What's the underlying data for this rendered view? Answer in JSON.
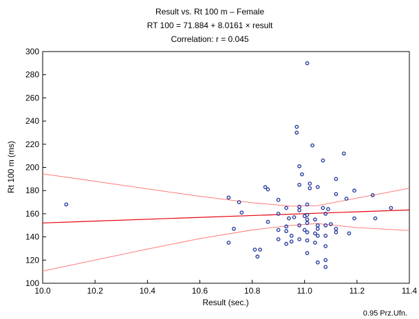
{
  "chart_data": {
    "type": "scatter",
    "title": "Result   vs. Rt 100 m – Female",
    "subtitle": "RT  100 = 71.884 + 8.0161 × result",
    "correlation": "Correlation: r = 0.045",
    "xlabel": "Result (sec.)",
    "ylabel": "Rt 100 m (ms)",
    "note": "0.95 Prz.Ufn.",
    "xlim": [
      10.0,
      11.4
    ],
    "ylim": [
      100,
      300
    ],
    "x_ticks": [
      10.0,
      10.2,
      10.4,
      10.6,
      10.8,
      11.0,
      11.2,
      11.4
    ],
    "x_tick_labels": [
      "10.0",
      "10.2",
      "10.4",
      "10.6",
      "10.8",
      "11.0",
      "11.2",
      "11.4"
    ],
    "y_ticks": [
      100,
      120,
      140,
      160,
      180,
      200,
      220,
      240,
      260,
      280,
      300
    ],
    "y_tick_labels": [
      "100",
      "120",
      "140",
      "160",
      "180",
      "200",
      "220",
      "240",
      "260",
      "280",
      "300"
    ],
    "grid": false,
    "regression": {
      "intercept": 71.884,
      "slope": 8.0161,
      "color": "#e8000b"
    },
    "confidence_band": {
      "level": 0.95,
      "color": "#ff6b6b",
      "upper": [
        [
          10.0,
          194.5
        ],
        [
          10.2,
          188
        ],
        [
          10.4,
          181.5
        ],
        [
          10.6,
          175
        ],
        [
          10.8,
          169.5
        ],
        [
          10.95,
          166.5
        ],
        [
          11.05,
          167
        ],
        [
          11.2,
          173.5
        ],
        [
          11.4,
          182
        ]
      ],
      "lower": [
        [
          10.0,
          110.5
        ],
        [
          10.2,
          120
        ],
        [
          10.4,
          129.5
        ],
        [
          10.6,
          138.5
        ],
        [
          10.8,
          146
        ],
        [
          10.95,
          150
        ],
        [
          11.05,
          151.5
        ],
        [
          11.2,
          148
        ],
        [
          11.4,
          145.5
        ]
      ]
    },
    "marker_color": "#2b3f9e",
    "points": [
      [
        10.09,
        168
      ],
      [
        10.71,
        174
      ],
      [
        10.71,
        135
      ],
      [
        10.73,
        147
      ],
      [
        10.75,
        170
      ],
      [
        10.76,
        161
      ],
      [
        10.81,
        129
      ],
      [
        10.82,
        123
      ],
      [
        10.83,
        129
      ],
      [
        10.85,
        183
      ],
      [
        10.86,
        181
      ],
      [
        10.86,
        153
      ],
      [
        10.9,
        172
      ],
      [
        10.9,
        160
      ],
      [
        10.9,
        146
      ],
      [
        10.9,
        138
      ],
      [
        10.93,
        165
      ],
      [
        10.93,
        149
      ],
      [
        10.93,
        145
      ],
      [
        10.93,
        134
      ],
      [
        10.94,
        156
      ],
      [
        10.95,
        141
      ],
      [
        10.95,
        136
      ],
      [
        10.96,
        157
      ],
      [
        10.97,
        235
      ],
      [
        10.97,
        230
      ],
      [
        10.98,
        201
      ],
      [
        10.98,
        185
      ],
      [
        10.98,
        166
      ],
      [
        10.98,
        163
      ],
      [
        10.98,
        150
      ],
      [
        10.98,
        138
      ],
      [
        10.99,
        194
      ],
      [
        11.0,
        158
      ],
      [
        11.0,
        146
      ],
      [
        11.01,
        290
      ],
      [
        11.01,
        168
      ],
      [
        11.01,
        159
      ],
      [
        11.01,
        155
      ],
      [
        11.01,
        152
      ],
      [
        11.01,
        144
      ],
      [
        11.01,
        137
      ],
      [
        11.01,
        126
      ],
      [
        11.02,
        186
      ],
      [
        11.02,
        182
      ],
      [
        11.03,
        219
      ],
      [
        11.04,
        155
      ],
      [
        11.04,
        143
      ],
      [
        11.04,
        135
      ],
      [
        11.05,
        183
      ],
      [
        11.05,
        150
      ],
      [
        11.05,
        147
      ],
      [
        11.05,
        141
      ],
      [
        11.05,
        118
      ],
      [
        11.07,
        206
      ],
      [
        11.07,
        165
      ],
      [
        11.08,
        160
      ],
      [
        11.08,
        150
      ],
      [
        11.08,
        141
      ],
      [
        11.08,
        132
      ],
      [
        11.08,
        120
      ],
      [
        11.08,
        114
      ],
      [
        11.09,
        164
      ],
      [
        11.1,
        151
      ],
      [
        11.12,
        190
      ],
      [
        11.12,
        177
      ],
      [
        11.12,
        147
      ],
      [
        11.12,
        144
      ],
      [
        11.15,
        212
      ],
      [
        11.16,
        173
      ],
      [
        11.17,
        143
      ],
      [
        11.19,
        180
      ],
      [
        11.19,
        156
      ],
      [
        11.26,
        176
      ],
      [
        11.27,
        156
      ],
      [
        11.33,
        165
      ]
    ]
  }
}
